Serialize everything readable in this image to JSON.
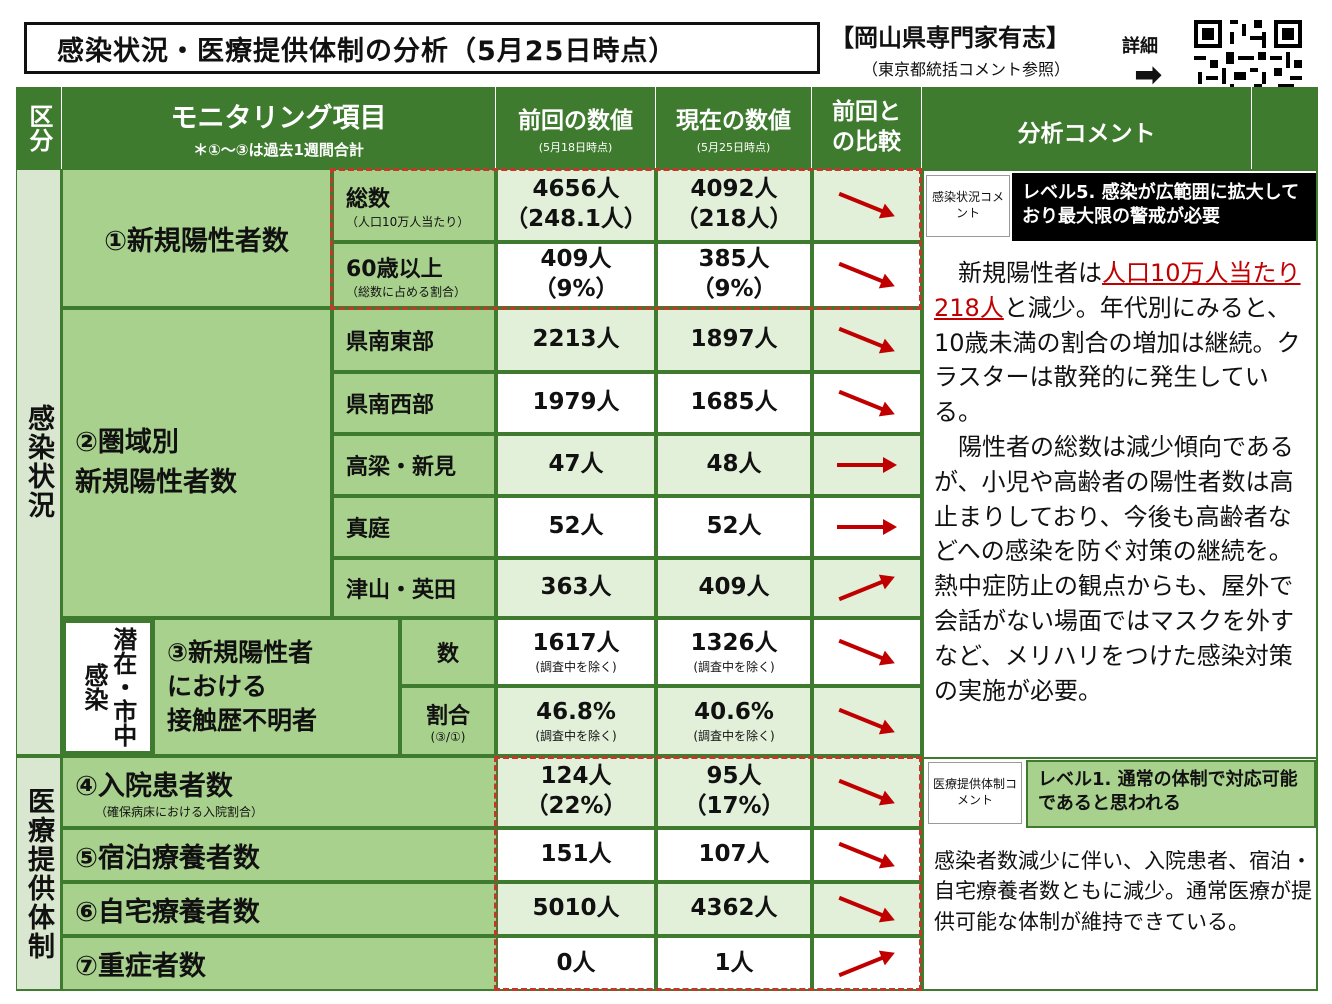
{
  "title": "感染状況・医療提供体制の分析（5月25日時点）",
  "org": "【岡山県専門家有志】",
  "org_note": "（東京都統括コメント参照）",
  "detail": "詳細",
  "arrow_right": "➡",
  "headers": {
    "section": "区分",
    "monitoring": "モニタリング項目",
    "monitoring_note": "＊①～③は過去1週間合計",
    "prev": "前回の数値",
    "prev_note": "(5月18日時点)",
    "curr": "現在の数値",
    "curr_note": "(5月25日時点)",
    "compare": "前回との比較",
    "comment": "分析コメント"
  },
  "sections": {
    "infection": "感染状況",
    "medical": "医療提供体制",
    "latent": "潜在・市中感染"
  },
  "items": {
    "new_cases": "①新規陽性者数",
    "regional_1": "②圏域別",
    "regional_2": "新規陽性者数",
    "unknown_1": "③新規陽性者",
    "unknown_2": "における",
    "unknown_3": "接触歴不明者",
    "hospital": "④入院患者数",
    "hospital_note": "（確保病床における入院割合）",
    "hotel": "⑤宿泊療養者数",
    "home": "⑥自宅療養者数",
    "severe": "⑦重症者数"
  },
  "rows": [
    {
      "label": "総数",
      "note": "（人口10万人当たり）",
      "prev": "4656人",
      "prev2": "（248.1人）",
      "curr": "4092人",
      "curr2": "（218人）",
      "trend": "down"
    },
    {
      "label": "60歳以上",
      "note": "（総数に占める割合）",
      "prev": "409人",
      "prev2": "（9%）",
      "curr": "385人",
      "curr2": "（9%）",
      "trend": "down"
    },
    {
      "label": "県南東部",
      "prev": "2213人",
      "curr": "1897人",
      "trend": "down"
    },
    {
      "label": "県南西部",
      "prev": "1979人",
      "curr": "1685人",
      "trend": "down"
    },
    {
      "label": "高梁・新見",
      "prev": "47人",
      "curr": "48人",
      "trend": "flat"
    },
    {
      "label": "真庭",
      "prev": "52人",
      "curr": "52人",
      "trend": "flat"
    },
    {
      "label": "津山・英田",
      "prev": "363人",
      "curr": "409人",
      "trend": "up"
    },
    {
      "label": "数",
      "prev": "1617人",
      "prev2": "(調査中を除く)",
      "curr": "1326人",
      "curr2": "(調査中を除く)",
      "trend": "down"
    },
    {
      "label": "割合",
      "note": "(③/①)",
      "prev": "46.8%",
      "prev2": "(調査中を除く)",
      "curr": "40.6%",
      "curr2": "(調査中を除く)",
      "trend": "down"
    },
    {
      "prev": "124人",
      "prev2": "（22%）",
      "curr": "95人",
      "curr2": "（17%）",
      "trend": "down"
    },
    {
      "prev": "151人",
      "curr": "107人",
      "trend": "down"
    },
    {
      "prev": "5010人",
      "curr": "4362人",
      "trend": "down"
    },
    {
      "prev": "0人",
      "curr": "1人",
      "trend": "up"
    }
  ],
  "infection_comment": {
    "tag": "感染状況コメント",
    "level": "レベル5. 感染が広範囲に拡大しており最大限の警戒が必要",
    "p1_pre": "　新規陽性者は",
    "p1_red": "人口10万人当たり218人",
    "p1_post": "と減少。年代別にみると、10歳未満の割合の増加は継続。クラスターは散発的に発生している。",
    "p2": "　陽性者の総数は減少傾向であるが、小児や高齢者の陽性者数は高止まりしており、今後も高齢者などへの感染を防ぐ対策の継続を。熱中症防止の観点からも、屋外で会話がない場面ではマスクを外すなど、メリハリをつけた感染対策の実施が必要。"
  },
  "medical_comment": {
    "tag": "医療提供体制コメント",
    "level": "レベル1. 通常の体制で対応可能であると思われる",
    "text": "感染者数減少に伴い、入院患者、宿泊・自宅療養者数ともに減少。通常医療が提供可能な体制が維持できている。"
  },
  "colors": {
    "header": "#3f7b2e",
    "green": "#a9d18e",
    "arrow": "#c00000"
  }
}
